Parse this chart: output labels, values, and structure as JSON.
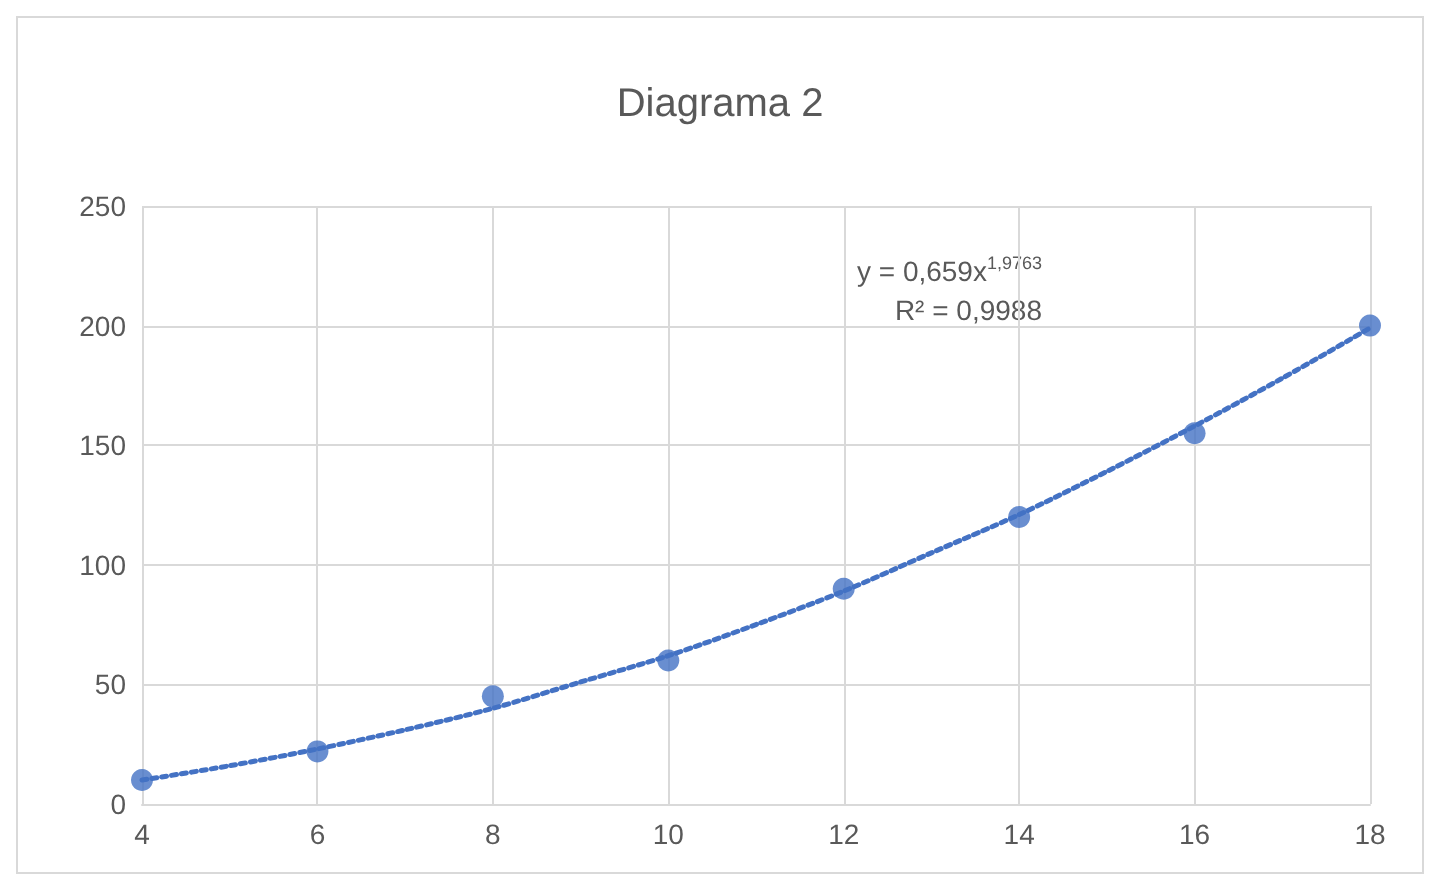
{
  "chart_data": {
    "type": "scatter",
    "title": "Diagrama 2",
    "x": [
      4,
      6,
      8,
      10,
      12,
      14,
      16,
      18
    ],
    "series": [
      {
        "color": "#4472c4",
        "values": [
          10,
          22,
          45,
          60,
          90,
          120,
          155,
          200
        ],
        "marker": "circle"
      },
      {
        "type": "line",
        "color": "#4472c4",
        "line_style": "dotted",
        "marker": "none",
        "x": [
          4,
          5,
          6,
          7,
          8,
          9,
          10,
          11,
          12,
          13,
          14,
          15,
          16,
          17,
          18
        ],
        "values": [
          10,
          16,
          23,
          31,
          40,
          51,
          62,
          75,
          89,
          105,
          121,
          139,
          158,
          178,
          199
        ]
      }
    ],
    "annotations": [
      "y = 0,659x$^{1,9763}$",
      "R² = 0,9988"
    ],
    "xlim": [
      4,
      18
    ],
    "xticks": [
      4,
      6,
      8,
      10,
      12,
      14,
      16,
      18
    ],
    "ylim": [
      0,
      250
    ],
    "yticks": [
      0,
      50,
      100,
      150,
      200,
      250
    ],
    "grid": true
  }
}
